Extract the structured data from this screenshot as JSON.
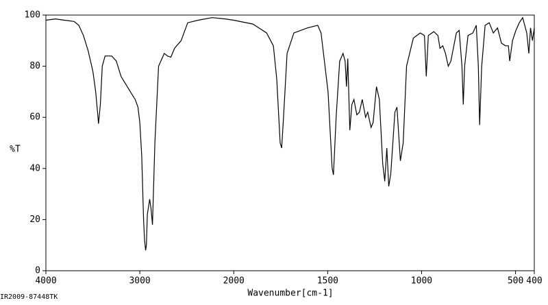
{
  "chart_data": {
    "type": "line",
    "ylabel": "%T",
    "xlabel": "Wavenumber[cm-1]",
    "footer": "IR2009-87448TK",
    "xlim": [
      4000,
      400
    ],
    "ylim": [
      0,
      100
    ],
    "x_scale_break": 2000,
    "x_scale_factor": 2,
    "xticks": [
      4000,
      3000,
      2000,
      1500,
      1000,
      500,
      400
    ],
    "yticks": [
      0,
      20,
      40,
      60,
      80,
      100
    ],
    "color": "#000000",
    "x": [
      4000,
      3900,
      3800,
      3700,
      3650,
      3600,
      3550,
      3500,
      3470,
      3450,
      3440,
      3420,
      3400,
      3370,
      3300,
      3250,
      3200,
      3150,
      3100,
      3050,
      3020,
      3000,
      2980,
      2960,
      2950,
      2938,
      2930,
      2920,
      2895,
      2880,
      2865,
      2840,
      2800,
      2740,
      2705,
      2670,
      2630,
      2560,
      2490,
      2380,
      2230,
      2090,
      2000,
      1898,
      1825,
      1789,
      1771,
      1753,
      1745,
      1735,
      1716,
      1680,
      1607,
      1553,
      1535,
      1498,
      1476,
      1469,
      1455,
      1436,
      1418,
      1407,
      1400,
      1393,
      1382,
      1371,
      1360,
      1345,
      1331,
      1316,
      1298,
      1287,
      1269,
      1258,
      1240,
      1225,
      1207,
      1196,
      1185,
      1175,
      1164,
      1142,
      1131,
      1113,
      1098,
      1080,
      1044,
      1007,
      985,
      975,
      964,
      935,
      913,
      902,
      887,
      873,
      858,
      844,
      815,
      800,
      785,
      778,
      771,
      753,
      727,
      709,
      698,
      691,
      680,
      662,
      640,
      618,
      596,
      575,
      553,
      538,
      531,
      516,
      498,
      480,
      462,
      451,
      440,
      429,
      420,
      410,
      400
    ],
    "values": [
      98,
      98.5,
      98,
      97.5,
      96,
      92,
      86,
      78,
      70,
      62,
      57.5,
      65,
      80,
      84,
      84,
      82,
      76,
      73,
      70,
      67,
      64,
      58,
      45,
      20,
      12,
      8,
      10,
      22,
      28,
      24,
      18,
      50,
      80,
      85,
      84,
      83.5,
      87,
      90,
      97,
      98,
      99,
      98.5,
      98,
      96.5,
      93,
      88,
      75,
      50,
      48,
      60,
      85,
      93,
      95,
      96,
      93,
      70,
      40,
      37.5,
      60,
      82,
      85,
      82,
      72,
      83,
      55,
      65,
      67,
      61,
      62,
      67,
      60,
      62,
      56,
      58,
      72,
      67,
      42,
      35,
      48,
      33,
      38,
      62,
      64,
      43,
      50,
      80,
      91,
      93,
      92,
      76,
      92,
      93.5,
      92,
      87,
      88,
      85,
      80,
      82,
      93,
      94,
      80,
      65,
      80,
      92,
      93,
      96,
      80,
      57,
      80,
      96,
      97,
      93,
      95,
      89,
      88,
      88,
      82,
      90,
      94,
      97,
      99,
      96,
      93,
      85,
      95,
      90,
      95
    ]
  }
}
